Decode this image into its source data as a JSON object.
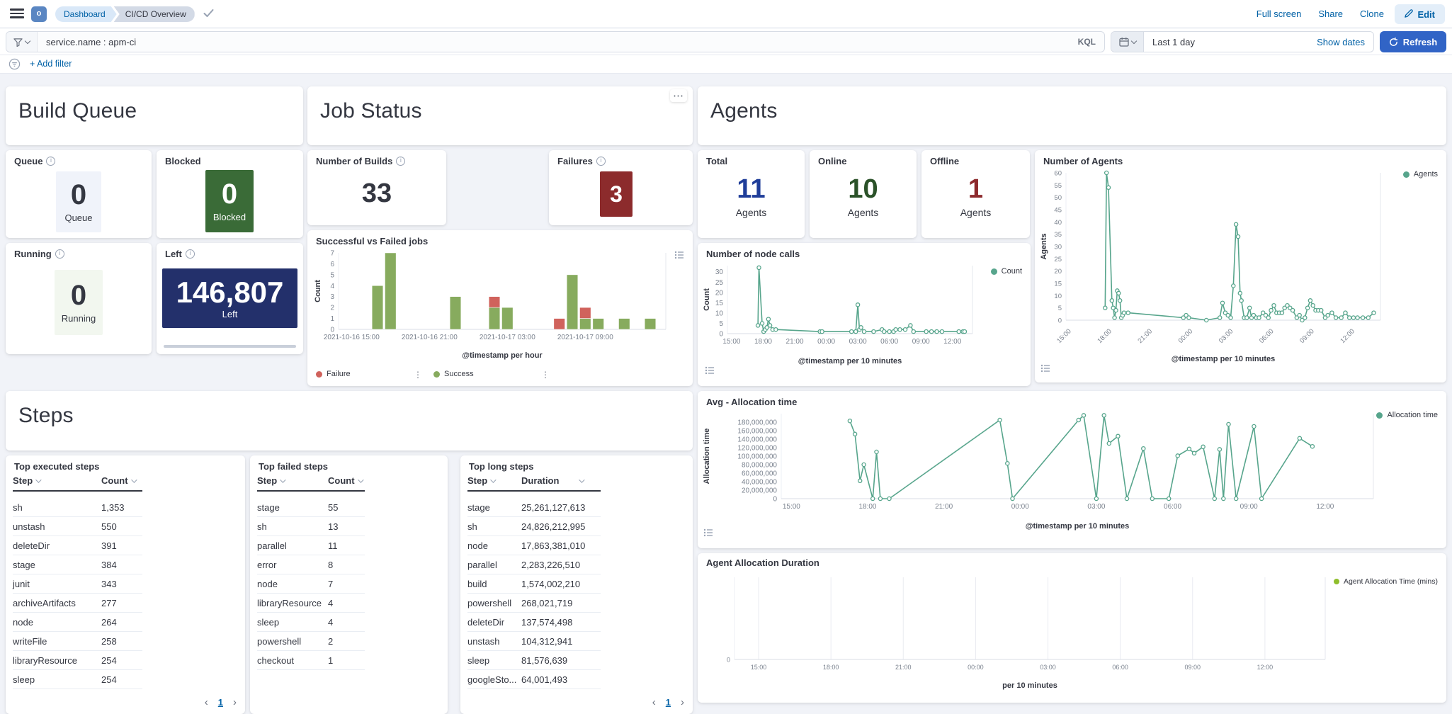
{
  "header": {
    "breadcrumbs": [
      "Dashboard",
      "CI/CD Overview"
    ],
    "actions": {
      "full_screen": "Full screen",
      "share": "Share",
      "clone": "Clone",
      "edit": "Edit"
    }
  },
  "query_bar": {
    "query": "service.name : apm-ci",
    "language": "KQL",
    "time_range": "Last 1 day",
    "show_dates": "Show dates",
    "refresh": "Refresh"
  },
  "filter_bar": {
    "add_filter": "+ Add filter"
  },
  "titles": {
    "build_queue": "Build Queue",
    "job_status": "Job Status",
    "agents": "Agents",
    "steps": "Steps"
  },
  "metrics": {
    "queue": {
      "title": "Queue",
      "value": "0",
      "label": "Queue",
      "square_bg": "#F0F3FA",
      "fg": "#343741"
    },
    "blocked": {
      "title": "Blocked",
      "value": "0",
      "label": "Blocked",
      "square_bg": "#3A6B37",
      "fg": "#FFFFFF"
    },
    "running": {
      "title": "Running",
      "value": "0",
      "label": "Running",
      "square_bg": "#F2F7EF",
      "fg": "#343741"
    },
    "left": {
      "title": "Left",
      "value": "146,807",
      "label": "Left",
      "square_bg": "#23306B",
      "fg": "#FFFFFF"
    },
    "builds": {
      "title": "Number of Builds",
      "value": "33",
      "fg": "#343741"
    },
    "failures": {
      "title": "Failures",
      "value": "3",
      "square_bg": "#8C2B2C",
      "fg": "#FFFFFF"
    },
    "total": {
      "title": "Total",
      "value": "11",
      "label": "Agents",
      "fg": "#1F3D99"
    },
    "online": {
      "title": "Online",
      "value": "10",
      "label": "Agents",
      "fg": "#2B5229"
    },
    "offline": {
      "title": "Offline",
      "value": "1",
      "label": "Agents",
      "fg": "#8D2A2D"
    }
  },
  "tables": {
    "executed": {
      "title": "Top executed steps",
      "columns": [
        "Step",
        "Count"
      ],
      "rows": [
        [
          "sh",
          "1,353"
        ],
        [
          "unstash",
          "550"
        ],
        [
          "deleteDir",
          "391"
        ],
        [
          "stage",
          "384"
        ],
        [
          "junit",
          "343"
        ],
        [
          "archiveArtifacts",
          "277"
        ],
        [
          "node",
          "264"
        ],
        [
          "writeFile",
          "258"
        ],
        [
          "libraryResource",
          "254"
        ],
        [
          "sleep",
          "254"
        ]
      ],
      "page": "1"
    },
    "failed": {
      "title": "Top failed steps",
      "columns": [
        "Step",
        "Count"
      ],
      "rows": [
        [
          "stage",
          "55"
        ],
        [
          "sh",
          "13"
        ],
        [
          "parallel",
          "11"
        ],
        [
          "error",
          "8"
        ],
        [
          "node",
          "7"
        ],
        [
          "libraryResource",
          "4"
        ],
        [
          "sleep",
          "4"
        ],
        [
          "powershell",
          "2"
        ],
        [
          "checkout",
          "1"
        ]
      ]
    },
    "long": {
      "title": "Top long steps",
      "columns": [
        "Step",
        "Duration"
      ],
      "rows": [
        [
          "stage",
          "25,261,127,613"
        ],
        [
          "sh",
          "24,826,212,995"
        ],
        [
          "node",
          "17,863,381,010"
        ],
        [
          "parallel",
          "2,283,226,510"
        ],
        [
          "build",
          "1,574,002,210"
        ],
        [
          "powershell",
          "268,021,719"
        ],
        [
          "deleteDir",
          "137,574,498"
        ],
        [
          "unstash",
          "104,312,941"
        ],
        [
          "sleep",
          "81,576,639"
        ],
        [
          "googleSto...",
          "64,001,493"
        ]
      ],
      "page": "1"
    }
  },
  "chart_data": {
    "sf": {
      "type": "bar",
      "title": "Successful vs Failed jobs",
      "xlabel": "@timestamp per hour",
      "ylabel": "Count",
      "x_base": "hours after 2021-10-16 14:00",
      "xlim": [
        0,
        25.2
      ],
      "ylim": [
        0,
        7
      ],
      "yticks": [
        0,
        1,
        2,
        3,
        4,
        5,
        6,
        7
      ],
      "xticks": [
        {
          "v": 1,
          "label": "2021-10-16 15:00"
        },
        {
          "v": 7,
          "label": "2021-10-16 21:00"
        },
        {
          "v": 13,
          "label": "2021-10-17 03:00"
        },
        {
          "v": 19,
          "label": "2021-10-17 09:00"
        }
      ],
      "bar_w": 0.85,
      "colors": {
        "success": "#87AB5E",
        "failure": "#D0625C"
      },
      "bars": [
        [
          3,
          4,
          0
        ],
        [
          4,
          7,
          0
        ],
        [
          9,
          3,
          0
        ],
        [
          12,
          2,
          1
        ],
        [
          13,
          2,
          0
        ],
        [
          17,
          0,
          1
        ],
        [
          18,
          5,
          0
        ],
        [
          19,
          1,
          1
        ],
        [
          20,
          1,
          0
        ],
        [
          22,
          1,
          0
        ],
        [
          24,
          1,
          0
        ]
      ],
      "legend": [
        {
          "label": "Failure",
          "color": "#D0625C"
        },
        {
          "label": "Success",
          "color": "#87AB5E"
        }
      ],
      "m": {
        "l": 36,
        "r": 18,
        "t": 6,
        "b": 44
      }
    },
    "calls": {
      "type": "line",
      "title": "Number of node calls",
      "xlabel": "@timestamp per 10 minutes",
      "ylabel": "Count",
      "x_base": "hours after 2021-10-16 14:00",
      "xlim": [
        0.6,
        23.9
      ],
      "ylim": [
        0,
        33
      ],
      "yticks": [
        0,
        5,
        10,
        15,
        20,
        25,
        30
      ],
      "xticks": [
        {
          "v": 1,
          "label": "15:00"
        },
        {
          "v": 4,
          "label": "18:00"
        },
        {
          "v": 7,
          "label": "21:00"
        },
        {
          "v": 10,
          "label": "00:00"
        },
        {
          "v": 13,
          "label": "03:00"
        },
        {
          "v": 16,
          "label": "06:00"
        },
        {
          "v": 19,
          "label": "09:00"
        },
        {
          "v": 22,
          "label": "12:00"
        }
      ],
      "color": "#57A58C",
      "points": [
        [
          3.5,
          4
        ],
        [
          3.6,
          32
        ],
        [
          3.9,
          5
        ],
        [
          4.05,
          1
        ],
        [
          4.2,
          2
        ],
        [
          4.35,
          3
        ],
        [
          4.5,
          7
        ],
        [
          4.65,
          4
        ],
        [
          4.9,
          2
        ],
        [
          5.2,
          2
        ],
        [
          9.4,
          1
        ],
        [
          9.6,
          1
        ],
        [
          12.4,
          1
        ],
        [
          12.8,
          1
        ],
        [
          13,
          14
        ],
        [
          13.15,
          2
        ],
        [
          13.3,
          3
        ],
        [
          13.6,
          1
        ],
        [
          14.5,
          1
        ],
        [
          15.3,
          2
        ],
        [
          15.5,
          1
        ],
        [
          16,
          1
        ],
        [
          16.4,
          1
        ],
        [
          16.6,
          2
        ],
        [
          17,
          2
        ],
        [
          17.5,
          2
        ],
        [
          18,
          4
        ],
        [
          18.3,
          1
        ],
        [
          19.5,
          1
        ],
        [
          20,
          1
        ],
        [
          20.5,
          1
        ],
        [
          21,
          1
        ],
        [
          22.6,
          1
        ],
        [
          23,
          1
        ],
        [
          23.15,
          1
        ]
      ],
      "legend": [
        {
          "label": "Count",
          "color": "#57A58C"
        }
      ],
      "m": {
        "l": 36,
        "r": 10,
        "t": 8,
        "b": 46
      }
    },
    "agents_line": {
      "type": "line",
      "title": "Number of Agents",
      "xlabel": "@timestamp per 10 minutes",
      "ylabel": "Agents",
      "x_base": "hours after 2021-10-16 14:00",
      "xlim": [
        0.6,
        23.9
      ],
      "ylim": [
        0,
        60
      ],
      "yticks": [
        0,
        5,
        10,
        15,
        20,
        25,
        30,
        35,
        40,
        45,
        50,
        55,
        60
      ],
      "xticks": [
        {
          "v": 1,
          "label": "15:00"
        },
        {
          "v": 4,
          "label": "18:00"
        },
        {
          "v": 7,
          "label": "21:00"
        },
        {
          "v": 10,
          "label": "00:00"
        },
        {
          "v": 13,
          "label": "03:00"
        },
        {
          "v": 16,
          "label": "06:00"
        },
        {
          "v": 19,
          "label": "09:00"
        },
        {
          "v": 22,
          "label": "12:00"
        }
      ],
      "rotate_x": true,
      "fs": 9.5,
      "color": "#57A58C",
      "points": [
        [
          3.5,
          5
        ],
        [
          3.6,
          60
        ],
        [
          3.75,
          54
        ],
        [
          4,
          8
        ],
        [
          4.1,
          5
        ],
        [
          4.2,
          1
        ],
        [
          4.3,
          4
        ],
        [
          4.4,
          12
        ],
        [
          4.5,
          11
        ],
        [
          4.6,
          8
        ],
        [
          4.7,
          1
        ],
        [
          4.8,
          2
        ],
        [
          4.9,
          3
        ],
        [
          5.2,
          3
        ],
        [
          9.3,
          1
        ],
        [
          9.5,
          2
        ],
        [
          9.7,
          1
        ],
        [
          11,
          0
        ],
        [
          12,
          1
        ],
        [
          12.2,
          7
        ],
        [
          12.4,
          3
        ],
        [
          12.6,
          2
        ],
        [
          12.8,
          1
        ],
        [
          13,
          14
        ],
        [
          13.2,
          39
        ],
        [
          13.35,
          34
        ],
        [
          13.5,
          11
        ],
        [
          13.6,
          8
        ],
        [
          13.8,
          1
        ],
        [
          14,
          1
        ],
        [
          14.2,
          5
        ],
        [
          14.35,
          1
        ],
        [
          14.5,
          2
        ],
        [
          14.7,
          1
        ],
        [
          14.9,
          1
        ],
        [
          15.2,
          3
        ],
        [
          15.4,
          2
        ],
        [
          15.6,
          1
        ],
        [
          15.8,
          4
        ],
        [
          16,
          6
        ],
        [
          16.2,
          3
        ],
        [
          16.4,
          3
        ],
        [
          16.6,
          3
        ],
        [
          16.8,
          5
        ],
        [
          17,
          6
        ],
        [
          17.2,
          5
        ],
        [
          17.4,
          4
        ],
        [
          17.7,
          1
        ],
        [
          17.9,
          2
        ],
        [
          18.1,
          0
        ],
        [
          18.3,
          1
        ],
        [
          18.5,
          5
        ],
        [
          18.7,
          8
        ],
        [
          18.9,
          6
        ],
        [
          19.1,
          4
        ],
        [
          19.3,
          4
        ],
        [
          19.5,
          4
        ],
        [
          19.8,
          1
        ],
        [
          20,
          2
        ],
        [
          20.3,
          3
        ],
        [
          20.6,
          1
        ],
        [
          21,
          1
        ],
        [
          21.3,
          3
        ],
        [
          21.6,
          1
        ],
        [
          21.9,
          1
        ],
        [
          22.2,
          1
        ],
        [
          22.6,
          1
        ],
        [
          23,
          1
        ],
        [
          23.4,
          3
        ]
      ],
      "legend": [
        {
          "label": "Agents",
          "color": "#57A58C"
        }
      ],
      "m": {
        "l": 38,
        "r": 10,
        "t": 8,
        "b": 62
      }
    },
    "alloc": {
      "type": "line",
      "title": "Avg - Allocation time",
      "xlabel": "@timestamp per 10 minutes",
      "ylabel": "Allocation time",
      "x_base": "hours after 2021-10-16 14:00",
      "xlim": [
        0.6,
        23.9
      ],
      "ylim": [
        0,
        200000000
      ],
      "yticks": [
        0,
        20000000,
        40000000,
        60000000,
        80000000,
        100000000,
        120000000,
        140000000,
        160000000,
        180000000
      ],
      "ytick_labels": [
        "0",
        "20,000,000",
        "40,000,000",
        "60,000,000",
        "80,000,000",
        "100,000,000",
        "120,000,000",
        "140,000,000",
        "160,000,000",
        "180,000,000"
      ],
      "xticks": [
        {
          "v": 1,
          "label": "15:00"
        },
        {
          "v": 4,
          "label": "18:00"
        },
        {
          "v": 7,
          "label": "21:00"
        },
        {
          "v": 10,
          "label": "00:00"
        },
        {
          "v": 13,
          "label": "03:00"
        },
        {
          "v": 16,
          "label": "06:00"
        },
        {
          "v": 19,
          "label": "09:00"
        },
        {
          "v": 22,
          "label": "12:00"
        }
      ],
      "color": "#57A58C",
      "points": [
        [
          3.3,
          183000000
        ],
        [
          3.5,
          152000000
        ],
        [
          3.7,
          42000000
        ],
        [
          3.85,
          80000000
        ],
        [
          4.2,
          0
        ],
        [
          4.35,
          110000000
        ],
        [
          4.5,
          0
        ],
        [
          4.85,
          0
        ],
        [
          9.2,
          185000000
        ],
        [
          9.5,
          83000000
        ],
        [
          9.7,
          0
        ],
        [
          12.3,
          185000000
        ],
        [
          12.5,
          196000000
        ],
        [
          13,
          0
        ],
        [
          13.3,
          196000000
        ],
        [
          13.5,
          130000000
        ],
        [
          13.85,
          147000000
        ],
        [
          14.2,
          0
        ],
        [
          14.85,
          118000000
        ],
        [
          15.2,
          0
        ],
        [
          15.85,
          0
        ],
        [
          16.2,
          101000000
        ],
        [
          16.65,
          117000000
        ],
        [
          16.85,
          107000000
        ],
        [
          17.2,
          122000000
        ],
        [
          17.65,
          0
        ],
        [
          17.85,
          116000000
        ],
        [
          18,
          0
        ],
        [
          18.2,
          175000000
        ],
        [
          18.5,
          0
        ],
        [
          19.2,
          170000000
        ],
        [
          19.5,
          0
        ],
        [
          21,
          142000000
        ],
        [
          21.5,
          123000000
        ]
      ],
      "legend": [
        {
          "label": "Allocation time",
          "color": "#57A58C"
        }
      ],
      "m": {
        "l": 112,
        "r": 12,
        "t": 10,
        "b": 46
      }
    },
    "duration": {
      "type": "line",
      "title": "Agent Allocation Duration",
      "xlabel": "per 10 minutes",
      "ylabel": "",
      "xlim": [
        0,
        24.5
      ],
      "ylim": [
        0,
        1
      ],
      "yticks": [
        0
      ],
      "ytick_labels": [
        "0"
      ],
      "xticks": [
        {
          "v": 1,
          "label": "15:00"
        },
        {
          "v": 4,
          "label": "18:00"
        },
        {
          "v": 7,
          "label": "21:00"
        },
        {
          "v": 10,
          "label": "00:00"
        },
        {
          "v": 13,
          "label": "03:00"
        },
        {
          "v": 16,
          "label": "06:00"
        },
        {
          "v": 19,
          "label": "09:00"
        },
        {
          "v": 22,
          "label": "12:00"
        }
      ],
      "vgrid": true,
      "fs": 9,
      "color": "#8FBE2B",
      "points": [],
      "legend": [
        {
          "label": "Agent Allocation Time (mins)",
          "color": "#8FBE2B"
        }
      ],
      "m": {
        "l": 44,
        "r": 12,
        "t": 10,
        "b": 44
      }
    }
  }
}
